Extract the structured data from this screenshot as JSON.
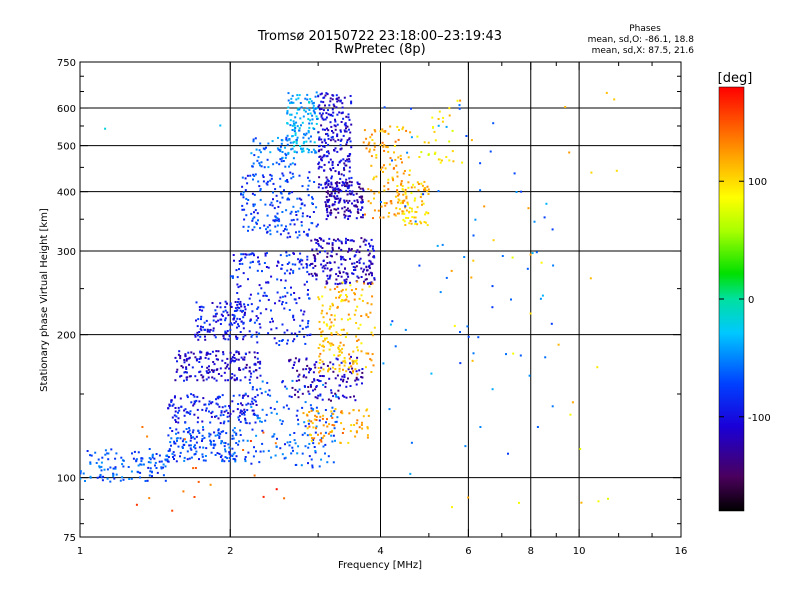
{
  "chart_data": {
    "type": "scatter",
    "title": "Tromsø 20150722 23:18:00–23:19:43",
    "subtitle": "RwPretec (8p)",
    "xlabel": "Frequency [MHz]",
    "ylabel": "Stationary phase Virtual Height [km]",
    "x_scale": "log",
    "y_scale": "log",
    "xlim": [
      1,
      16
    ],
    "ylim": [
      75,
      750
    ],
    "x_ticks": [
      "1",
      "2",
      "4",
      "6",
      "8",
      "10",
      "16"
    ],
    "y_ticks": [
      "75",
      "100",
      "200",
      "300",
      "400",
      "500",
      "600",
      "750"
    ],
    "grid": true,
    "colorbar": {
      "label": "[deg]",
      "range": [
        -180,
        180
      ],
      "ticks": [
        "100",
        "0",
        "-100"
      ]
    },
    "stats": {
      "header": "Phases",
      "o_line": "mean, sd,O: -86.1, 18.8",
      "x_line": "mean, sd,X:  87.5, 21.6"
    },
    "clusters": [
      {
        "x": [
          1.0,
          1.5
        ],
        "y": [
          98,
          115
        ],
        "phase": -70,
        "n": 120
      },
      {
        "x": [
          1.5,
          2.1
        ],
        "y": [
          108,
          128
        ],
        "phase": -75,
        "n": 160
      },
      {
        "x": [
          1.5,
          2.3
        ],
        "y": [
          130,
          150
        ],
        "phase": -95,
        "n": 150
      },
      {
        "x": [
          1.55,
          2.3
        ],
        "y": [
          160,
          185
        ],
        "phase": -110,
        "n": 170
      },
      {
        "x": [
          1.7,
          2.2
        ],
        "y": [
          195,
          235
        ],
        "phase": -100,
        "n": 130
      },
      {
        "x": [
          2.0,
          2.9
        ],
        "y": [
          190,
          300
        ],
        "phase": -90,
        "n": 200
      },
      {
        "x": [
          2.1,
          3.0
        ],
        "y": [
          320,
          440
        ],
        "phase": -80,
        "n": 180
      },
      {
        "x": [
          2.1,
          3.3
        ],
        "y": [
          105,
          160
        ],
        "phase": -70,
        "n": 160
      },
      {
        "x": [
          2.2,
          2.7
        ],
        "y": [
          450,
          520
        ],
        "phase": -60,
        "n": 60
      },
      {
        "x": [
          2.6,
          3.0
        ],
        "y": [
          480,
          650
        ],
        "phase": -40,
        "n": 140
      },
      {
        "x": [
          3.0,
          3.5
        ],
        "y": [
          400,
          650
        ],
        "phase": -110,
        "n": 240
      },
      {
        "x": [
          3.1,
          3.7
        ],
        "y": [
          350,
          420
        ],
        "phase": -120,
        "n": 140
      },
      {
        "x": [
          2.9,
          3.9
        ],
        "y": [
          255,
          320
        ],
        "phase": -115,
        "n": 200
      },
      {
        "x": [
          2.6,
          3.7
        ],
        "y": [
          145,
          180
        ],
        "phase": -120,
        "n": 120
      },
      {
        "x": [
          3.0,
          3.9
        ],
        "y": [
          165,
          260
        ],
        "phase": 110,
        "n": 180
      },
      {
        "x": [
          2.8,
          3.8
        ],
        "y": [
          118,
          140
        ],
        "phase": 120,
        "n": 80
      },
      {
        "x": [
          3.7,
          4.6
        ],
        "y": [
          350,
          550
        ],
        "phase": 115,
        "n": 110
      },
      {
        "x": [
          4.3,
          5.0
        ],
        "y": [
          340,
          420
        ],
        "phase": 105,
        "n": 90
      },
      {
        "x": [
          4.7,
          5.6
        ],
        "y": [
          460,
          600
        ],
        "phase": 90,
        "n": 30
      },
      {
        "x": [
          4.0,
          9.0
        ],
        "y": [
          100,
          620
        ],
        "phase": -60,
        "n": 70
      },
      {
        "x": [
          5.5,
          12.0
        ],
        "y": [
          85,
          650
        ],
        "phase": 100,
        "n": 35
      },
      {
        "x": [
          1.3,
          2.6
        ],
        "y": [
          85,
          130
        ],
        "phase": 150,
        "n": 20
      },
      {
        "x": [
          1.1,
          2.0
        ],
        "y": [
          540,
          560
        ],
        "phase": -40,
        "n": 2
      }
    ]
  }
}
